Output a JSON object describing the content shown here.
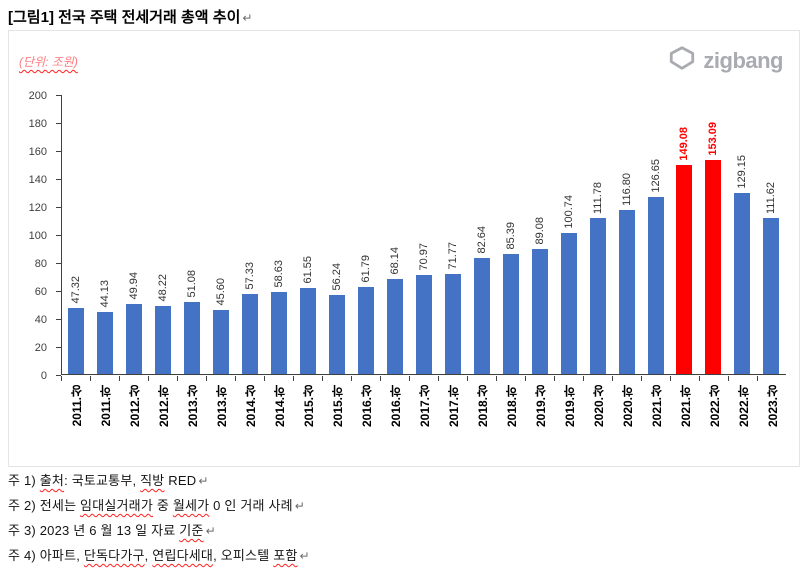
{
  "page": {
    "title": "[그림1] 전국 주택 전세거래 총액 추이",
    "line_break_mark": "↵"
  },
  "logo": {
    "text": "zigbang",
    "icon": "zigbang-room-icon",
    "color": "#a9abb0"
  },
  "chart_data": {
    "type": "bar",
    "title": "전국 주택 전세거래 총액 추이",
    "unit_label": "(단위: 조원)",
    "unit_label_color": "#ff7c80",
    "categories": [
      "2011.상",
      "2011.하",
      "2012.상",
      "2012.하",
      "2013.상",
      "2013.하",
      "2014.상",
      "2014.하",
      "2015.상",
      "2015.하",
      "2016.상",
      "2016.하",
      "2017.상",
      "2017.하",
      "2018.상",
      "2018.하",
      "2019.상",
      "2019.하",
      "2020.상",
      "2020.하",
      "2021.상",
      "2021.하",
      "2022.상",
      "2022.하",
      "2023.상"
    ],
    "values": [
      47.32,
      44.13,
      49.94,
      48.22,
      51.08,
      45.6,
      57.33,
      58.63,
      61.55,
      56.24,
      61.79,
      68.14,
      70.97,
      71.77,
      82.64,
      85.39,
      89.08,
      100.74,
      111.78,
      116.8,
      126.65,
      149.08,
      153.09,
      129.15,
      111.62
    ],
    "value_labels": [
      "47.32",
      "44.13",
      "49.94",
      "48.22",
      "51.08",
      "45.60",
      "57.33",
      "58.63",
      "61.55",
      "56.24",
      "61.79",
      "68.14",
      "70.97",
      "71.77",
      "82.64",
      "85.39",
      "89.08",
      "100.74",
      "111.78",
      "116.80",
      "126.65",
      "149.08",
      "153.09",
      "129.15",
      "111.62"
    ],
    "bar_color": "#4472C4",
    "highlight_color": "#FF0000",
    "highlight_indices": [
      21,
      22
    ],
    "ylim": [
      0,
      200
    ],
    "ytick_step": 20,
    "grid": false,
    "legend": false,
    "xlabel": "",
    "ylabel": ""
  },
  "notes": [
    {
      "segments": [
        {
          "t": "주 1) ",
          "w": false
        },
        {
          "t": "출처",
          "w": true
        },
        {
          "t": ": ",
          "w": false
        },
        {
          "t": "국토교통부",
          "w": false
        },
        {
          "t": ", ",
          "w": false
        },
        {
          "t": "직방",
          "w": true
        },
        {
          "t": " RED",
          "w": false
        }
      ]
    },
    {
      "segments": [
        {
          "t": "주 2) 전세는 ",
          "w": false
        },
        {
          "t": "임대실거래가",
          "w": true
        },
        {
          "t": " 중 ",
          "w": false
        },
        {
          "t": "월세가",
          "w": true
        },
        {
          "t": " 0 인 거래 사례",
          "w": false
        }
      ]
    },
    {
      "segments": [
        {
          "t": "주 3) 2023 년 6 월 13 일 자료 ",
          "w": false
        },
        {
          "t": "기준",
          "w": true
        }
      ]
    },
    {
      "segments": [
        {
          "t": "주 4) 아파트, ",
          "w": false
        },
        {
          "t": "단독다가구",
          "w": true
        },
        {
          "t": ", ",
          "w": false
        },
        {
          "t": "연립다세대",
          "w": true
        },
        {
          "t": ", 오피스텔 ",
          "w": false
        },
        {
          "t": "포함",
          "w": true
        }
      ]
    }
  ]
}
